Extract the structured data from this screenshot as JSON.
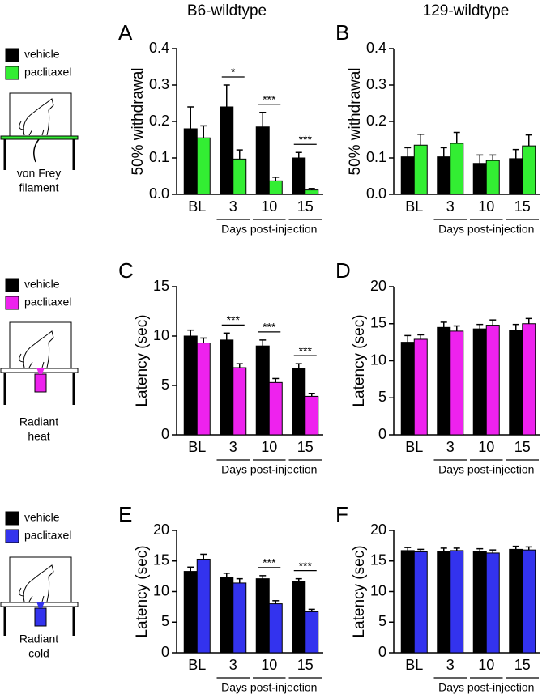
{
  "column_titles": [
    "B6-wildtype",
    "129-wildtype"
  ],
  "stimulus_labels": [
    [
      "von Frey",
      "filament"
    ],
    [
      "Radiant",
      "heat"
    ],
    [
      "Radiant",
      "cold"
    ]
  ],
  "chart_data": [
    {
      "type": "bar",
      "panel_label": "A",
      "ylabel": "50% withdrawal",
      "xlabel": "Days post-injection",
      "categories": [
        "BL",
        "3",
        "10",
        "15"
      ],
      "series": [
        {
          "name": "vehicle",
          "color": "#000000",
          "values": [
            0.18,
            0.24,
            0.185,
            0.1
          ],
          "errors": [
            0.06,
            0.06,
            0.04,
            0.015
          ]
        },
        {
          "name": "paclitaxel",
          "color": "#33ee33",
          "values": [
            0.155,
            0.097,
            0.037,
            0.012
          ],
          "errors": [
            0.033,
            0.025,
            0.01,
            0.004
          ]
        }
      ],
      "annotations": [
        null,
        "*",
        "***",
        "***"
      ],
      "ylim": [
        0,
        0.4
      ],
      "yticks": [
        {
          "value": 0,
          "label": "0.0"
        },
        0.1,
        0.2,
        0.3,
        0.4
      ]
    },
    {
      "type": "bar",
      "panel_label": "B",
      "ylabel": "50% withdrawal",
      "xlabel": "Days post-injection",
      "categories": [
        "BL",
        "3",
        "10",
        "15"
      ],
      "series": [
        {
          "color": "#000000",
          "values": [
            0.103,
            0.103,
            0.085,
            0.098
          ],
          "errors": [
            0.025,
            0.025,
            0.023,
            0.025
          ]
        },
        {
          "color": "#33ee33",
          "values": [
            0.135,
            0.14,
            0.093,
            0.133
          ],
          "errors": [
            0.03,
            0.03,
            0.015,
            0.03
          ]
        }
      ],
      "ylim": [
        0,
        0.4
      ],
      "yticks": [
        {
          "value": 0,
          "label": "0.0"
        },
        0.1,
        0.2,
        0.3,
        0.4
      ]
    },
    {
      "type": "bar",
      "panel_label": "C",
      "ylabel": "Latency (sec)",
      "xlabel": "Days post-injection",
      "categories": [
        "BL",
        "3",
        "10",
        "15"
      ],
      "series": [
        {
          "name": "vehicle",
          "color": "#000000",
          "values": [
            10.0,
            9.6,
            9.0,
            6.7
          ],
          "errors": [
            0.6,
            0.7,
            0.6,
            0.5
          ]
        },
        {
          "name": "paclitaxel",
          "color": "#ee22ee",
          "values": [
            9.3,
            6.8,
            5.3,
            3.9
          ],
          "errors": [
            0.5,
            0.4,
            0.4,
            0.3
          ]
        }
      ],
      "annotations": [
        null,
        "***",
        "***",
        "***"
      ],
      "ylim": [
        0,
        15
      ],
      "yticks": [
        0,
        5,
        10,
        15
      ]
    },
    {
      "type": "bar",
      "panel_label": "D",
      "ylabel": "Latency (sec)",
      "xlabel": "Days post-injection",
      "categories": [
        "BL",
        "3",
        "10",
        "15"
      ],
      "series": [
        {
          "color": "#000000",
          "values": [
            12.5,
            14.5,
            14.3,
            14.1
          ],
          "errors": [
            0.9,
            0.7,
            0.6,
            0.8
          ]
        },
        {
          "color": "#ee22ee",
          "values": [
            12.9,
            14.0,
            14.8,
            15.0
          ],
          "errors": [
            0.6,
            0.7,
            0.7,
            0.7
          ]
        }
      ],
      "ylim": [
        0,
        20
      ],
      "yticks": [
        0,
        5,
        10,
        15,
        20
      ]
    },
    {
      "type": "bar",
      "panel_label": "E",
      "ylabel": "Latency (sec)",
      "xlabel": "Days post-injection",
      "categories": [
        "BL",
        "3",
        "10",
        "15"
      ],
      "series": [
        {
          "name": "vehicle",
          "color": "#000000",
          "values": [
            13.3,
            12.3,
            12.1,
            11.6
          ],
          "errors": [
            0.7,
            0.7,
            0.5,
            0.5
          ]
        },
        {
          "name": "paclitaxel",
          "color": "#3333ee",
          "values": [
            15.3,
            11.4,
            8.0,
            6.7
          ],
          "errors": [
            0.8,
            0.7,
            0.5,
            0.4
          ]
        }
      ],
      "annotations": [
        null,
        null,
        "***",
        "***"
      ],
      "ylim": [
        0,
        20
      ],
      "yticks": [
        0,
        5,
        10,
        15,
        20
      ]
    },
    {
      "type": "bar",
      "panel_label": "F",
      "ylabel": "Latency (sec)",
      "xlabel": "Days post-injection",
      "categories": [
        "BL",
        "3",
        "10",
        "15"
      ],
      "series": [
        {
          "color": "#000000",
          "values": [
            16.7,
            16.6,
            16.5,
            16.9
          ],
          "errors": [
            0.5,
            0.5,
            0.5,
            0.5
          ]
        },
        {
          "color": "#3333ee",
          "values": [
            16.5,
            16.7,
            16.3,
            16.8
          ],
          "errors": [
            0.4,
            0.4,
            0.5,
            0.5
          ]
        }
      ],
      "ylim": [
        0,
        20
      ],
      "yticks": [
        0,
        5,
        10,
        15,
        20
      ]
    }
  ]
}
